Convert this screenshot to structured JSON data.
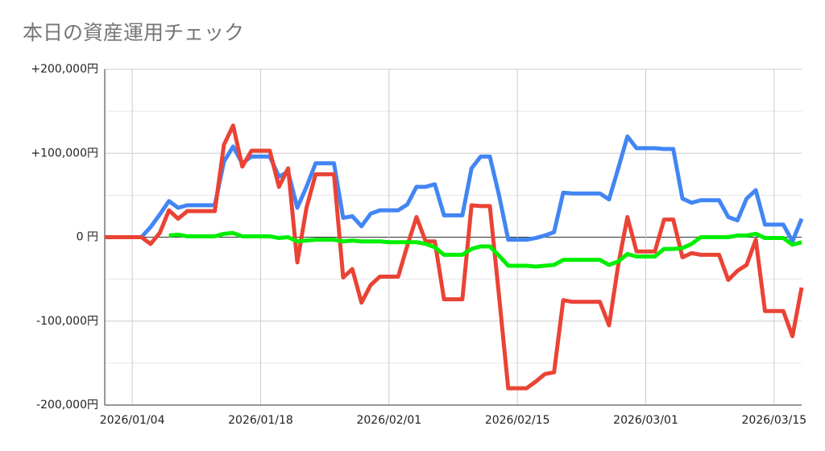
{
  "chart_data": {
    "type": "line",
    "title": "本日の資産運用チェック",
    "x": [
      "2026/01/01",
      "2026/01/02",
      "2026/01/03",
      "2026/01/04",
      "2026/01/05",
      "2026/01/06",
      "2026/01/07",
      "2026/01/08",
      "2026/01/09",
      "2026/01/10",
      "2026/01/11",
      "2026/01/12",
      "2026/01/13",
      "2026/01/14",
      "2026/01/15",
      "2026/01/16",
      "2026/01/17",
      "2026/01/18",
      "2026/01/19",
      "2026/01/20",
      "2026/01/21",
      "2026/01/22",
      "2026/01/23",
      "2026/01/24",
      "2026/01/25",
      "2026/01/26",
      "2026/01/27",
      "2026/01/28",
      "2026/01/29",
      "2026/01/30",
      "2026/01/31",
      "2026/02/01",
      "2026/02/02",
      "2026/02/03",
      "2026/02/04",
      "2026/02/05",
      "2026/02/06",
      "2026/02/07",
      "2026/02/08",
      "2026/02/09",
      "2026/02/10",
      "2026/02/11",
      "2026/02/12",
      "2026/02/13",
      "2026/02/14",
      "2026/02/15",
      "2026/02/16",
      "2026/02/17",
      "2026/02/18",
      "2026/02/19",
      "2026/02/20",
      "2026/02/21",
      "2026/02/22",
      "2026/02/23",
      "2026/02/24",
      "2026/02/25",
      "2026/02/26",
      "2026/02/27",
      "2026/02/28",
      "2026/03/01",
      "2026/03/02",
      "2026/03/03",
      "2026/03/04",
      "2026/03/05",
      "2026/03/06",
      "2026/03/07",
      "2026/03/08",
      "2026/03/09",
      "2026/03/10",
      "2026/03/11",
      "2026/03/12",
      "2026/03/13",
      "2026/03/14",
      "2026/03/15",
      "2026/03/16",
      "2026/03/17",
      "2026/03/18"
    ],
    "xticks": [
      "2026/01/04",
      "2026/01/18",
      "2026/02/01",
      "2026/02/15",
      "2026/03/01",
      "2026/03/15"
    ],
    "series": [
      {
        "color": "#4285f4",
        "values": [
          0,
          0,
          0,
          0,
          0,
          12000,
          27000,
          43000,
          35000,
          38000,
          38000,
          38000,
          38000,
          90000,
          108000,
          88000,
          96000,
          96000,
          96000,
          72000,
          78000,
          35000,
          60000,
          88000,
          88000,
          88000,
          23000,
          25000,
          13000,
          28000,
          32000,
          32000,
          32000,
          39000,
          60000,
          60000,
          63000,
          26000,
          26000,
          26000,
          82000,
          96000,
          96000,
          50000,
          -3000,
          -3000,
          -3000,
          -1000,
          2000,
          6000,
          53000,
          52000,
          52000,
          52000,
          52000,
          45000,
          82000,
          120000,
          106000,
          106000,
          106000,
          105000,
          105000,
          46000,
          41000,
          44000,
          44000,
          44000,
          24000,
          20000,
          46000,
          56000,
          15000,
          15000,
          15000,
          -5000,
          22000
        ]
      },
      {
        "color": "#ea4335",
        "values": [
          0,
          0,
          0,
          0,
          0,
          -8000,
          5000,
          32000,
          22000,
          31000,
          31000,
          31000,
          31000,
          110000,
          133000,
          84000,
          103000,
          103000,
          103000,
          60000,
          82000,
          -30000,
          35000,
          75000,
          75000,
          75000,
          -48000,
          -38000,
          -78000,
          -57000,
          -47000,
          -47000,
          -47000,
          -10000,
          24000,
          -5000,
          -5000,
          -74000,
          -74000,
          -74000,
          38000,
          37000,
          37000,
          -70000,
          -180000,
          -180000,
          -180000,
          -172000,
          -163000,
          -161000,
          -75000,
          -77000,
          -77000,
          -77000,
          -77000,
          -105000,
          -33000,
          24000,
          -17000,
          -17000,
          -17000,
          21000,
          21000,
          -24000,
          -19000,
          -21000,
          -21000,
          -21000,
          -51000,
          -40000,
          -33000,
          -3000,
          -88000,
          -88000,
          -88000,
          -118000,
          -60000
        ]
      },
      {
        "color": "#00ee00",
        "values": [
          null,
          null,
          null,
          null,
          null,
          null,
          null,
          2000,
          3000,
          1000,
          1000,
          1000,
          1000,
          4000,
          5000,
          1000,
          1000,
          1000,
          1000,
          -1000,
          0,
          -5000,
          -4000,
          -3000,
          -3000,
          -3000,
          -5000,
          -4000,
          -5000,
          -5000,
          -5000,
          -6000,
          -6000,
          -6000,
          -6000,
          -8000,
          -12000,
          -21000,
          -21000,
          -21000,
          -14000,
          -11000,
          -11000,
          -22000,
          -34000,
          -34000,
          -34000,
          -35000,
          -34000,
          -33000,
          -27000,
          -27000,
          -27000,
          -27000,
          -27000,
          -33000,
          -29000,
          -20000,
          -23000,
          -23000,
          -23000,
          -14000,
          -14000,
          -13000,
          -8000,
          0,
          0,
          0,
          0,
          2000,
          2000,
          4000,
          -1000,
          -1000,
          -1000,
          -9000,
          -6000
        ]
      }
    ],
    "ylim": [
      -200000,
      200000
    ],
    "yticks": [
      {
        "value": -200000,
        "label": "-200,000円"
      },
      {
        "value": -100000,
        "label": "-100,000円"
      },
      {
        "value": 0,
        "label": "0 円"
      },
      {
        "value": 100000,
        "label": "+100,000円"
      },
      {
        "value": 200000,
        "label": "+200,000円"
      }
    ],
    "minor_yticks": [
      -150000,
      -50000,
      50000,
      150000
    ],
    "grid": true
  }
}
